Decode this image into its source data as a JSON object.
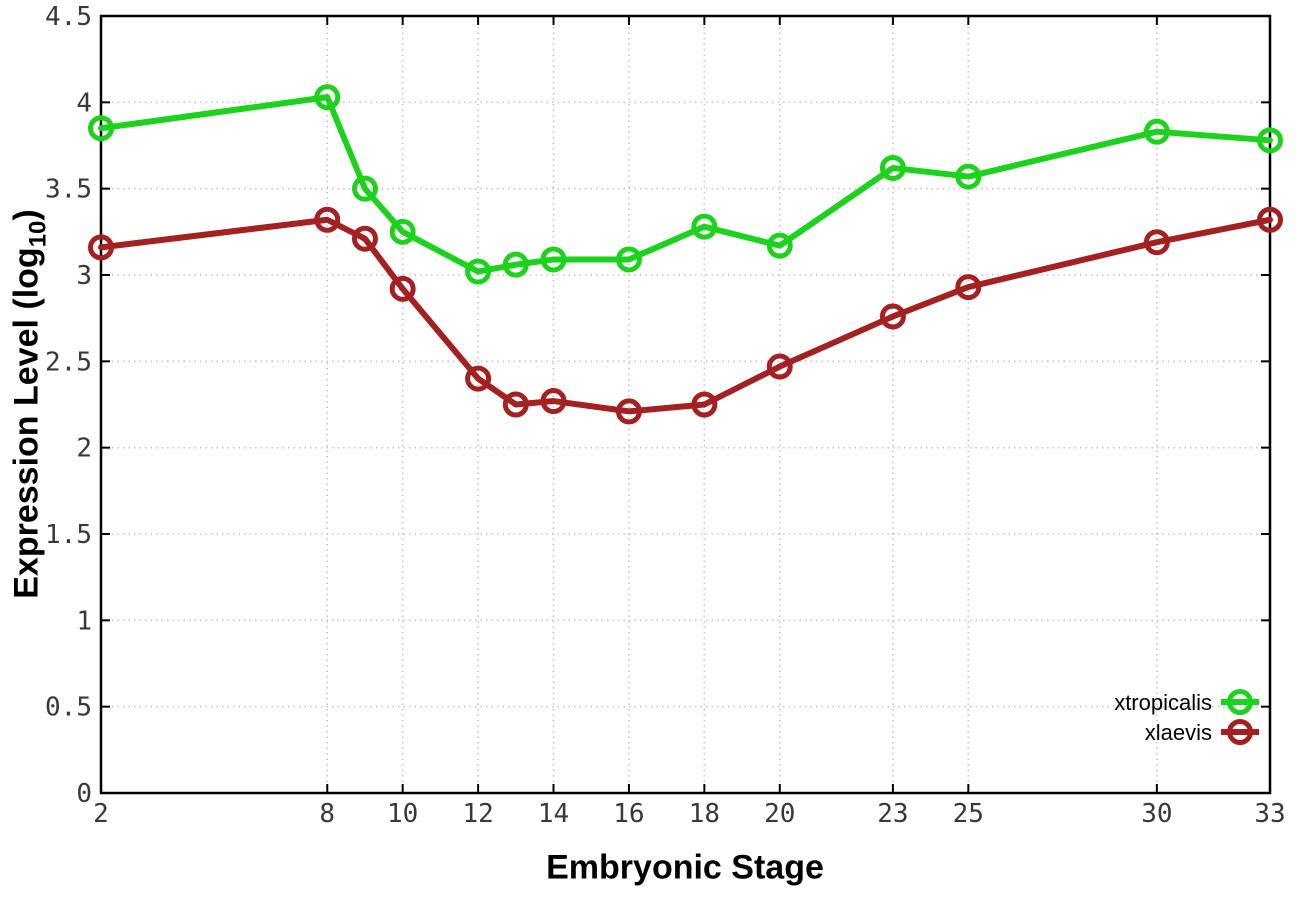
{
  "chart_data": {
    "type": "line",
    "title": "",
    "xlabel": "Embryonic Stage",
    "ylabel": "Expression Level (log10)",
    "x": [
      2,
      8,
      9,
      10,
      12,
      13,
      14,
      16,
      18,
      20,
      23,
      25,
      30,
      33
    ],
    "xticks": [
      2,
      8,
      10,
      12,
      14,
      16,
      18,
      20,
      23,
      25,
      30,
      33
    ],
    "yticks": [
      0,
      0.5,
      1,
      1.5,
      2,
      2.5,
      3,
      3.5,
      4,
      4.5
    ],
    "xlim": [
      2,
      33
    ],
    "ylim": [
      0,
      4.5
    ],
    "grid": true,
    "legend_position": "bottom-right",
    "series": [
      {
        "name": "xtropicalis",
        "color": "#1dd21d",
        "values": [
          3.85,
          4.03,
          3.5,
          3.25,
          3.02,
          3.06,
          3.09,
          3.09,
          3.28,
          3.17,
          3.62,
          3.57,
          3.83,
          3.78
        ]
      },
      {
        "name": "xlaevis",
        "color": "#a42121",
        "values": [
          3.16,
          3.32,
          3.21,
          2.92,
          2.4,
          2.25,
          2.27,
          2.21,
          2.25,
          2.47,
          2.76,
          2.93,
          3.19,
          3.32
        ]
      }
    ],
    "colors": {
      "border": "#000000",
      "grid": "#c4c4c4",
      "tick_label": "#383838",
      "legend_text": "#000000"
    }
  }
}
